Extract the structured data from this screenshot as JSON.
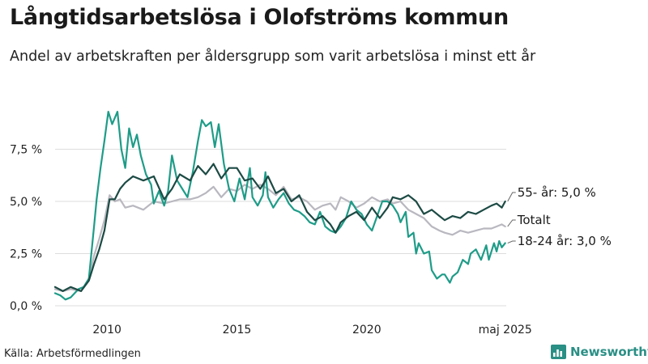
{
  "title": "Långtidsarbetslösa i Olofströms kommun",
  "subtitle": "Andel av arbetskraften per åldersgrupp som varit arbetslösa i minst ett år",
  "source": "Källa: Arbetsförmedlingen",
  "brand": "Newsworthy",
  "colors": {
    "series_55": "#1c4a44",
    "series_total": "#b9b7bf",
    "series_1824": "#1e9c88",
    "grid": "#dddddd",
    "axis_text": "#222222"
  },
  "chart_data": {
    "type": "line",
    "title": "Långtidsarbetslösa i Olofströms kommun",
    "subtitle": "Andel av arbetskraften per åldersgrupp som varit arbetslösa i minst ett år",
    "xlabel": "",
    "ylabel": "",
    "xlim": [
      2008.0,
      2025.37
    ],
    "ylim": [
      0,
      10
    ],
    "y_ticks": [
      0,
      2.5,
      5.0,
      7.5
    ],
    "y_tick_labels": [
      "0,0 %",
      "2,5 %",
      "5,0 %",
      "7,5 %"
    ],
    "x_ticks": [
      2010,
      2015,
      2020,
      2025.33
    ],
    "x_tick_labels": [
      "2010",
      "2015",
      "2020",
      "maj 2025"
    ],
    "grid": true,
    "legend": "end-labels",
    "series": [
      {
        "name": "55- år",
        "label": "55- år: 5,0 %",
        "last_value": 5.0,
        "points": [
          [
            2008.0,
            0.9
          ],
          [
            2008.3,
            0.7
          ],
          [
            2008.6,
            0.9
          ],
          [
            2009.0,
            0.7
          ],
          [
            2009.3,
            1.2
          ],
          [
            2009.5,
            2.0
          ],
          [
            2009.7,
            2.7
          ],
          [
            2009.9,
            3.6
          ],
          [
            2010.1,
            5.1
          ],
          [
            2010.3,
            5.1
          ],
          [
            2010.5,
            5.6
          ],
          [
            2010.7,
            5.9
          ],
          [
            2011.0,
            6.2
          ],
          [
            2011.4,
            6.0
          ],
          [
            2011.8,
            6.2
          ],
          [
            2012.2,
            5.1
          ],
          [
            2012.5,
            5.6
          ],
          [
            2012.8,
            6.3
          ],
          [
            2013.2,
            6.0
          ],
          [
            2013.5,
            6.7
          ],
          [
            2013.8,
            6.3
          ],
          [
            2014.1,
            6.8
          ],
          [
            2014.4,
            6.1
          ],
          [
            2014.7,
            6.6
          ],
          [
            2015.0,
            6.6
          ],
          [
            2015.3,
            6.0
          ],
          [
            2015.6,
            6.1
          ],
          [
            2015.9,
            5.6
          ],
          [
            2016.2,
            6.2
          ],
          [
            2016.5,
            5.4
          ],
          [
            2016.8,
            5.6
          ],
          [
            2017.1,
            5.0
          ],
          [
            2017.4,
            5.3
          ],
          [
            2017.7,
            4.5
          ],
          [
            2018.0,
            4.1
          ],
          [
            2018.3,
            4.3
          ],
          [
            2018.6,
            3.9
          ],
          [
            2018.8,
            3.5
          ],
          [
            2019.0,
            4.0
          ],
          [
            2019.3,
            4.3
          ],
          [
            2019.6,
            4.5
          ],
          [
            2019.9,
            4.1
          ],
          [
            2020.2,
            4.7
          ],
          [
            2020.5,
            4.2
          ],
          [
            2020.8,
            4.7
          ],
          [
            2021.0,
            5.2
          ],
          [
            2021.3,
            5.1
          ],
          [
            2021.6,
            5.3
          ],
          [
            2021.9,
            5.0
          ],
          [
            2022.2,
            4.4
          ],
          [
            2022.5,
            4.6
          ],
          [
            2022.8,
            4.3
          ],
          [
            2023.0,
            4.1
          ],
          [
            2023.3,
            4.3
          ],
          [
            2023.6,
            4.2
          ],
          [
            2023.9,
            4.5
          ],
          [
            2024.2,
            4.4
          ],
          [
            2024.5,
            4.6
          ],
          [
            2024.8,
            4.8
          ],
          [
            2025.0,
            4.9
          ],
          [
            2025.2,
            4.7
          ],
          [
            2025.33,
            5.0
          ]
        ]
      },
      {
        "name": "Totalt",
        "label": "Totalt",
        "points": [
          [
            2008.0,
            0.8
          ],
          [
            2008.3,
            0.7
          ],
          [
            2008.6,
            0.8
          ],
          [
            2009.0,
            0.7
          ],
          [
            2009.3,
            1.3
          ],
          [
            2009.5,
            2.4
          ],
          [
            2009.7,
            3.2
          ],
          [
            2009.9,
            4.1
          ],
          [
            2010.1,
            5.3
          ],
          [
            2010.3,
            5.0
          ],
          [
            2010.5,
            5.1
          ],
          [
            2010.7,
            4.7
          ],
          [
            2011.0,
            4.8
          ],
          [
            2011.4,
            4.6
          ],
          [
            2011.8,
            5.0
          ],
          [
            2012.2,
            4.9
          ],
          [
            2012.5,
            5.0
          ],
          [
            2012.8,
            5.1
          ],
          [
            2013.2,
            5.1
          ],
          [
            2013.5,
            5.2
          ],
          [
            2013.8,
            5.4
          ],
          [
            2014.1,
            5.7
          ],
          [
            2014.4,
            5.2
          ],
          [
            2014.7,
            5.6
          ],
          [
            2015.0,
            5.5
          ],
          [
            2015.3,
            5.8
          ],
          [
            2015.6,
            5.6
          ],
          [
            2015.9,
            5.8
          ],
          [
            2016.2,
            5.6
          ],
          [
            2016.5,
            5.3
          ],
          [
            2016.8,
            5.7
          ],
          [
            2017.1,
            5.1
          ],
          [
            2017.4,
            5.2
          ],
          [
            2017.7,
            5.0
          ],
          [
            2018.0,
            4.6
          ],
          [
            2018.3,
            4.8
          ],
          [
            2018.6,
            4.9
          ],
          [
            2018.8,
            4.6
          ],
          [
            2019.0,
            5.2
          ],
          [
            2019.3,
            5.0
          ],
          [
            2019.6,
            4.7
          ],
          [
            2019.9,
            4.9
          ],
          [
            2020.2,
            5.2
          ],
          [
            2020.5,
            5.0
          ],
          [
            2020.8,
            5.1
          ],
          [
            2021.0,
            4.9
          ],
          [
            2021.3,
            5.0
          ],
          [
            2021.6,
            4.6
          ],
          [
            2021.9,
            4.4
          ],
          [
            2022.2,
            4.2
          ],
          [
            2022.5,
            3.8
          ],
          [
            2022.8,
            3.6
          ],
          [
            2023.0,
            3.5
          ],
          [
            2023.3,
            3.4
          ],
          [
            2023.6,
            3.6
          ],
          [
            2023.9,
            3.5
          ],
          [
            2024.2,
            3.6
          ],
          [
            2024.5,
            3.7
          ],
          [
            2024.8,
            3.7
          ],
          [
            2025.0,
            3.8
          ],
          [
            2025.2,
            3.9
          ],
          [
            2025.33,
            3.8
          ]
        ]
      },
      {
        "name": "18-24 år",
        "label": "18-24 år: 3,0 %",
        "last_value": 3.0,
        "points": [
          [
            2008.0,
            0.6
          ],
          [
            2008.2,
            0.5
          ],
          [
            2008.4,
            0.3
          ],
          [
            2008.6,
            0.4
          ],
          [
            2008.9,
            0.8
          ],
          [
            2009.1,
            0.9
          ],
          [
            2009.3,
            1.3
          ],
          [
            2009.5,
            3.8
          ],
          [
            2009.6,
            5.1
          ],
          [
            2009.75,
            6.6
          ],
          [
            2009.9,
            7.9
          ],
          [
            2010.05,
            9.3
          ],
          [
            2010.2,
            8.7
          ],
          [
            2010.4,
            9.3
          ],
          [
            2010.55,
            7.5
          ],
          [
            2010.7,
            6.6
          ],
          [
            2010.85,
            8.5
          ],
          [
            2011.0,
            7.6
          ],
          [
            2011.15,
            8.2
          ],
          [
            2011.3,
            7.2
          ],
          [
            2011.5,
            6.3
          ],
          [
            2011.7,
            5.8
          ],
          [
            2011.8,
            4.9
          ],
          [
            2012.0,
            5.5
          ],
          [
            2012.2,
            4.8
          ],
          [
            2012.35,
            5.5
          ],
          [
            2012.5,
            7.2
          ],
          [
            2012.7,
            6.0
          ],
          [
            2012.9,
            5.6
          ],
          [
            2013.1,
            5.2
          ],
          [
            2013.3,
            6.4
          ],
          [
            2013.5,
            7.9
          ],
          [
            2013.65,
            8.9
          ],
          [
            2013.8,
            8.6
          ],
          [
            2014.0,
            8.8
          ],
          [
            2014.15,
            7.6
          ],
          [
            2014.3,
            8.7
          ],
          [
            2014.5,
            6.8
          ],
          [
            2014.7,
            5.6
          ],
          [
            2014.9,
            5.0
          ],
          [
            2015.1,
            6.1
          ],
          [
            2015.3,
            5.1
          ],
          [
            2015.5,
            6.6
          ],
          [
            2015.6,
            5.2
          ],
          [
            2015.8,
            4.8
          ],
          [
            2016.0,
            5.3
          ],
          [
            2016.1,
            6.4
          ],
          [
            2016.2,
            5.2
          ],
          [
            2016.4,
            4.7
          ],
          [
            2016.6,
            5.1
          ],
          [
            2016.8,
            5.4
          ],
          [
            2017.0,
            4.9
          ],
          [
            2017.2,
            4.6
          ],
          [
            2017.4,
            4.5
          ],
          [
            2017.6,
            4.3
          ],
          [
            2017.8,
            4.0
          ],
          [
            2018.0,
            3.9
          ],
          [
            2018.2,
            4.5
          ],
          [
            2018.4,
            3.8
          ],
          [
            2018.6,
            3.6
          ],
          [
            2018.8,
            3.5
          ],
          [
            2019.0,
            3.8
          ],
          [
            2019.2,
            4.2
          ],
          [
            2019.4,
            5.0
          ],
          [
            2019.6,
            4.6
          ],
          [
            2019.8,
            4.4
          ],
          [
            2020.0,
            3.9
          ],
          [
            2020.2,
            3.6
          ],
          [
            2020.4,
            4.3
          ],
          [
            2020.6,
            5.0
          ],
          [
            2020.8,
            5.0
          ],
          [
            2021.0,
            4.8
          ],
          [
            2021.2,
            4.4
          ],
          [
            2021.3,
            4.0
          ],
          [
            2021.5,
            4.5
          ],
          [
            2021.6,
            3.3
          ],
          [
            2021.8,
            3.5
          ],
          [
            2021.9,
            2.5
          ],
          [
            2022.0,
            3.0
          ],
          [
            2022.2,
            2.5
          ],
          [
            2022.4,
            2.6
          ],
          [
            2022.5,
            1.7
          ],
          [
            2022.7,
            1.3
          ],
          [
            2022.9,
            1.5
          ],
          [
            2023.0,
            1.5
          ],
          [
            2023.2,
            1.1
          ],
          [
            2023.3,
            1.4
          ],
          [
            2023.5,
            1.6
          ],
          [
            2023.7,
            2.2
          ],
          [
            2023.9,
            2.0
          ],
          [
            2024.0,
            2.5
          ],
          [
            2024.2,
            2.7
          ],
          [
            2024.4,
            2.2
          ],
          [
            2024.6,
            2.9
          ],
          [
            2024.7,
            2.2
          ],
          [
            2024.9,
            3.0
          ],
          [
            2025.0,
            2.6
          ],
          [
            2025.1,
            3.1
          ],
          [
            2025.2,
            2.8
          ],
          [
            2025.33,
            3.0
          ]
        ]
      }
    ]
  }
}
